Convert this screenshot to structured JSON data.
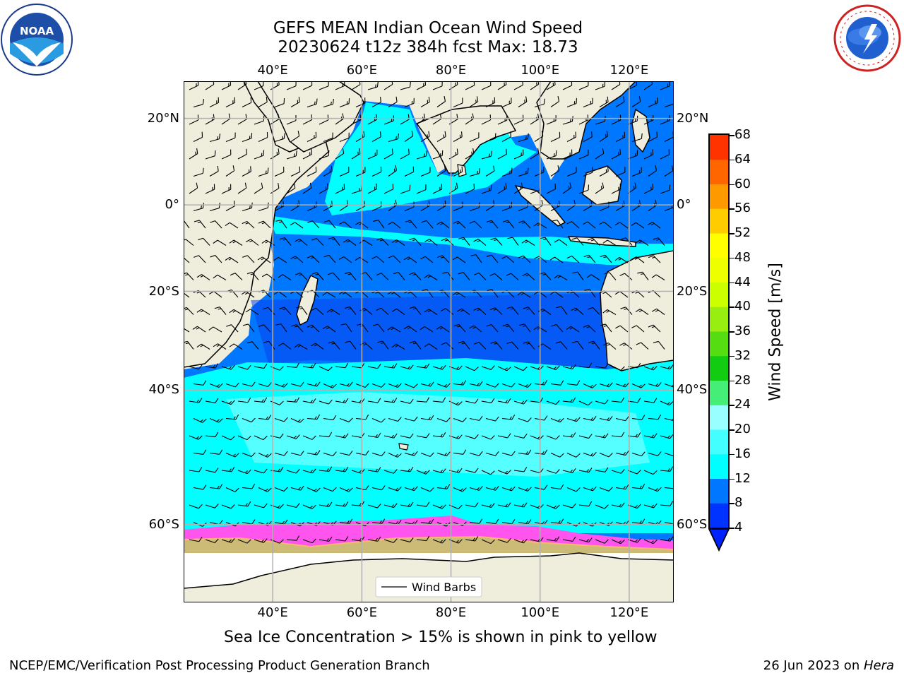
{
  "title": {
    "line1": "GEFS MEAN Indian Ocean Wind Speed",
    "line2": "20230624 t12z 384h fcst   Max: 18.73"
  },
  "logos": {
    "left": "noaa-logo",
    "right": "national-weather-service-logo",
    "left_text": "NOAA"
  },
  "map": {
    "lon_labels": [
      "40°E",
      "60°E",
      "80°E",
      "100°E",
      "120°E"
    ],
    "lon_values": [
      40,
      60,
      80,
      100,
      120
    ],
    "lat_labels_left": [
      "20°N",
      "0°",
      "20°S",
      "40°S",
      "60°S"
    ],
    "lat_labels_right": [
      "20°N",
      "0°",
      "20°S",
      "40°S",
      "60°S"
    ],
    "lat_values": [
      20,
      0,
      -20,
      -40,
      -60
    ],
    "lon_range": [
      20,
      130
    ],
    "lat_range": [
      -68,
      28
    ],
    "legend_label": "Wind Barbs",
    "land_color": "#efeddc",
    "ice_colors": [
      "#ff44ff",
      "#ff88cc",
      "#ffaa66",
      "#ffdd55"
    ]
  },
  "colorbar": {
    "label": "Wind Speed [m/s]",
    "ticks": [
      "4",
      "8",
      "12",
      "16",
      "20",
      "24",
      "28",
      "32",
      "36",
      "40",
      "44",
      "48",
      "52",
      "56",
      "60",
      "64",
      "68"
    ],
    "colors": [
      "#0033ff",
      "#0077ff",
      "#00ffff",
      "#44ffff",
      "#99ffff",
      "#44ee77",
      "#11cc11",
      "#55dd11",
      "#99ee11",
      "#ccff00",
      "#eeff00",
      "#ffff00",
      "#ffcc00",
      "#ff9900",
      "#ff6600",
      "#ff3300",
      "#ff0000"
    ]
  },
  "caption": "Sea Ice Concentration > 15% is shown in pink to yellow",
  "footer": {
    "left": "NCEP/EMC/Verification Post Processing Product Generation Branch",
    "date": "26 Jun 2023 on ",
    "host": "Hera"
  }
}
